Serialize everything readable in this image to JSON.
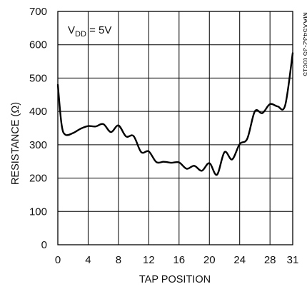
{
  "chart_data": {
    "type": "line",
    "xlabel": "TAP POSITION",
    "ylabel": "RESISTANCE (Ω)",
    "xlim": [
      0,
      31
    ],
    "ylim": [
      0,
      700
    ],
    "x_ticks": [
      0,
      4,
      8,
      12,
      16,
      20,
      24,
      28,
      31
    ],
    "y_ticks": [
      0,
      100,
      200,
      300,
      400,
      500,
      600,
      700
    ],
    "grid": true,
    "annotation": {
      "base": "V",
      "sub": "DD",
      "suffix": " = 5V"
    },
    "side_note": "MAX5432-35 toc15",
    "series": [
      {
        "color": "#000000",
        "x": [
          0,
          0.5,
          1,
          2,
          3,
          4,
          5,
          6,
          7,
          8,
          9,
          10,
          11,
          12,
          13,
          14,
          15,
          16,
          17,
          18,
          19,
          20,
          21,
          22,
          23,
          24,
          25,
          26,
          27,
          28,
          29,
          30,
          31
        ],
        "y": [
          480,
          360,
          330,
          335,
          348,
          356,
          355,
          362,
          338,
          358,
          325,
          326,
          278,
          280,
          248,
          249,
          246,
          247,
          228,
          237,
          222,
          245,
          210,
          278,
          256,
          302,
          318,
          400,
          395,
          422,
          415,
          418,
          575
        ]
      }
    ]
  }
}
